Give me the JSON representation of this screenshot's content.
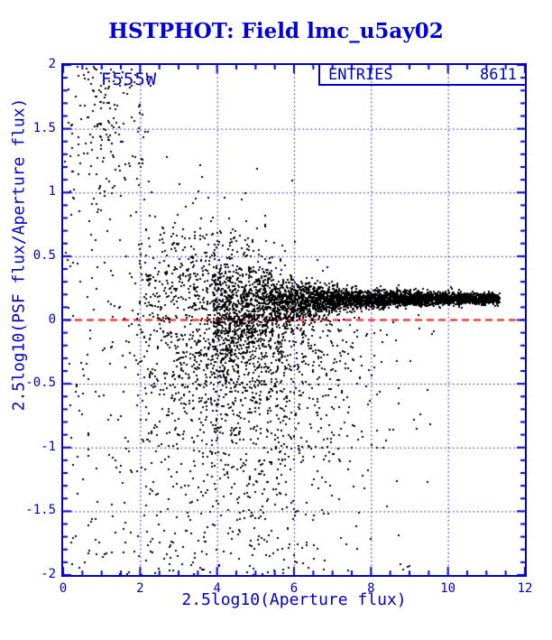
{
  "colors": {
    "axis_blue": "#0000cc",
    "title_blue": "#0000dd",
    "zero_line_red": "#ee1010",
    "point_black": "#000000",
    "background": "#ffffff"
  },
  "chart_data": {
    "type": "scatter",
    "title": "HSTPHOT: Field lmc_u5ay02",
    "filter_label": "F555W",
    "legend": {
      "label": "ENTRIES",
      "value": "8611"
    },
    "entries": 8611,
    "xlabel": "2.5log10(Aperture flux)",
    "ylabel": "2.5log10(PSF flux/Aperture flux)",
    "xlim": [
      0,
      12
    ],
    "ylim": [
      -2,
      2
    ],
    "x_ticks": {
      "values": [
        0,
        2,
        4,
        6,
        8,
        10,
        12
      ],
      "labels": [
        "0",
        "2",
        "4",
        "6",
        "8",
        "10",
        "12"
      ],
      "minor_step": 0.5
    },
    "y_ticks": {
      "values": [
        2,
        1.5,
        1,
        0.5,
        0,
        -0.5,
        -1,
        -1.5,
        -2
      ],
      "labels": [
        "2",
        "1.5",
        "1",
        "0.5",
        "0",
        "-0.5",
        "-1",
        "-1.5",
        "-2"
      ],
      "minor_step": 0.1
    },
    "grid": {
      "style": "dotted",
      "x_values": [
        2,
        4,
        6,
        8,
        10
      ],
      "y_values": [
        -1.5,
        -1,
        -0.5,
        0.5,
        1,
        1.5
      ]
    },
    "zero_line": {
      "y": 0,
      "style": "dashed"
    },
    "marker": {
      "size": 2
    },
    "point_generator": {
      "seed": 20250412,
      "components": [
        {
          "name": "bright-star-band",
          "type": "band",
          "n": 3300,
          "x_min": 3.9,
          "x_span": 7.45,
          "y_base": 0.17,
          "dip": 0.28,
          "dip_x0": 3.5,
          "dip_scale": 0.9,
          "sigma_min": 0.018,
          "sigma_amp": 0.32,
          "sigma_scale": 1.6
        },
        {
          "name": "band-core",
          "type": "band",
          "n": 700,
          "x_min": 5.5,
          "x_span": 5.8,
          "y_base": 0.165,
          "dip": 0.05,
          "dip_x0": 5.5,
          "dip_scale": 2.0,
          "sigma_min": 0.012,
          "sigma_amp": 0.05,
          "sigma_scale": 2.5
        },
        {
          "name": "faint-cloud",
          "type": "cloud",
          "n": 1500,
          "x_mu": 4.6,
          "x_sigma": 1.5,
          "x_min": 1.9,
          "x_max": 9.9,
          "y_top": 0.05,
          "y_slope": 0.62,
          "deep_frac": 0.27,
          "deep_span": 2.05
        },
        {
          "name": "above-band-halo",
          "type": "halo",
          "n": 430,
          "x_mu": 3.6,
          "x_sigma": 1.1,
          "x_min": 1.9,
          "x_max": 7.5,
          "y_base": 0.08,
          "y_sigma": 0.4,
          "y_max": 1.9
        },
        {
          "name": "left-field",
          "type": "uniform",
          "n": 240,
          "x_min": 0.03,
          "x_max": 2.3,
          "y_min": -2.0,
          "y_max": 2.0
        },
        {
          "name": "upper-left-cluster",
          "type": "gauss2d",
          "n": 115,
          "x_mu": 1.15,
          "x_sigma": 0.5,
          "x_lo": 0.15,
          "x_hi": 2.4,
          "y_mu": 1.55,
          "y_sigma": 0.38,
          "y_lo": 0.9,
          "y_hi": 2.02
        },
        {
          "name": "sparse-field",
          "type": "uniform",
          "n": 150,
          "x_min": 2.2,
          "x_max": 9.7,
          "y_min": -2.0,
          "y_max": 0.6
        }
      ]
    }
  }
}
